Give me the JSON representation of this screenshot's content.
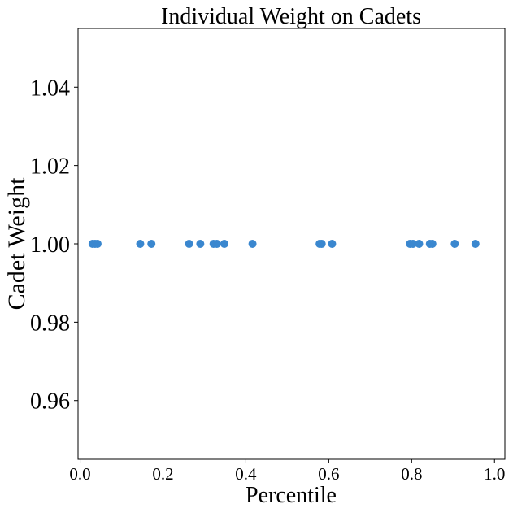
{
  "chart_data": {
    "type": "scatter",
    "title": "Individual Weight on Cadets",
    "xlabel": "Percentile",
    "ylabel": "Cadet Weight",
    "xlim": [
      -0.005,
      1.025
    ],
    "ylim": [
      0.945,
      1.055
    ],
    "xticks": [
      0.0,
      0.2,
      0.4,
      0.6,
      0.8,
      1.0
    ],
    "xtick_labels": [
      "0.0",
      "0.2",
      "0.4",
      "0.6",
      "0.8",
      "1.0"
    ],
    "yticks": [
      0.96,
      0.98,
      1.0,
      1.02,
      1.04
    ],
    "ytick_labels": [
      "0.96",
      "0.98",
      "1.00",
      "1.02",
      "1.04"
    ],
    "grid": false,
    "marker_color": "#3a87cf",
    "series": [
      {
        "x": [
          0.03,
          0.036,
          0.042,
          0.145,
          0.172,
          0.263,
          0.29,
          0.322,
          0.33,
          0.348,
          0.416,
          0.578,
          0.583,
          0.608,
          0.796,
          0.803,
          0.818,
          0.844,
          0.85,
          0.904,
          0.954
        ],
        "y": [
          1.0,
          1.0,
          1.0,
          1.0,
          1.0,
          1.0,
          1.0,
          1.0,
          1.0,
          1.0,
          1.0,
          1.0,
          1.0,
          1.0,
          1.0,
          1.0,
          1.0,
          1.0,
          1.0,
          1.0,
          1.0
        ]
      }
    ]
  }
}
